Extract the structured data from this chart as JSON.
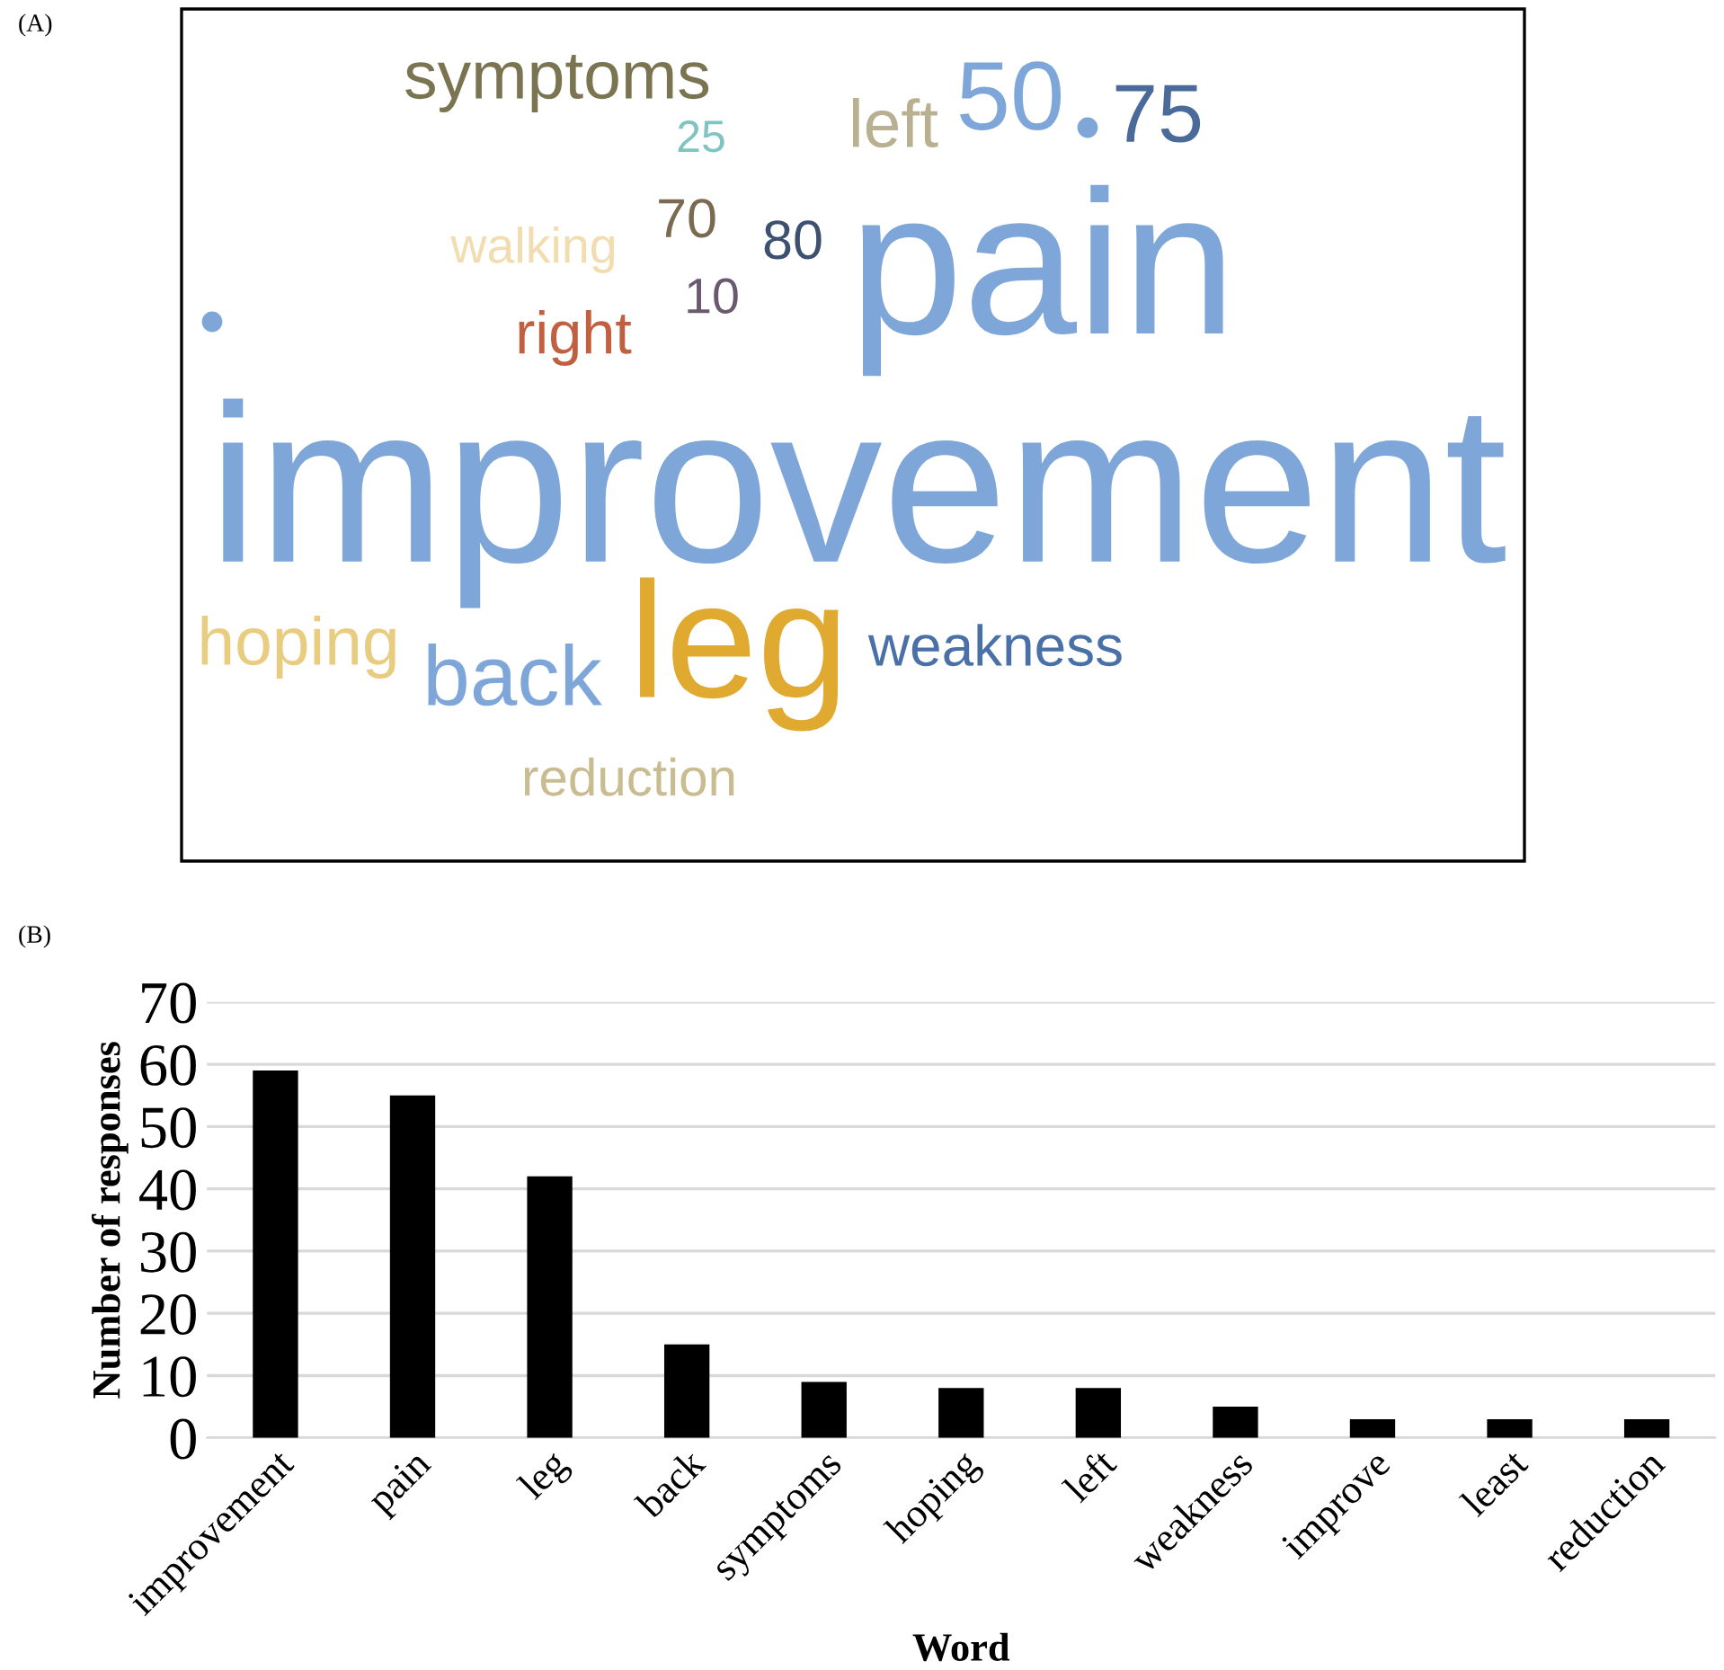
{
  "chart_data": [
    {
      "type": "other",
      "annotations": [
        "(A)",
        "symptoms",
        "25",
        "left",
        "50",
        "75",
        "70",
        "80",
        "10",
        "walking",
        "right",
        "pain",
        "improvement",
        "leg",
        "hoping",
        "back",
        "weakness",
        "reduction"
      ],
      "colors": [
        "#000000",
        "#7a7450",
        "#7fc4c0",
        "#b8b090",
        "#7ea6d8",
        "#4a6a9a",
        "#7a6a50",
        "#3d5070",
        "#6a5a70",
        "#f2dcb0",
        "#c06040",
        "#7ea6d8",
        "#7ea6d8",
        "#e0aa30",
        "#e8cc80",
        "#7ea6d8",
        "#4a70a8",
        "#c8bc90"
      ]
    },
    {
      "type": "bar",
      "xlabel": "Word",
      "ylabel": "Number of responses",
      "annotations": [
        "(B)"
      ],
      "categories": [
        "improvement",
        "pain",
        "leg",
        "back",
        "symptoms",
        "hoping",
        "left",
        "weakness",
        "improve",
        "least",
        "reduction"
      ],
      "values": [
        59,
        55,
        42,
        15,
        9,
        8,
        8,
        5,
        3,
        3,
        3
      ],
      "color": "#000000",
      "ylim": [
        0,
        70
      ],
      "yticks": [
        0,
        10,
        20,
        30,
        40,
        50,
        60,
        70
      ],
      "grid": "y",
      "legend": false
    }
  ]
}
